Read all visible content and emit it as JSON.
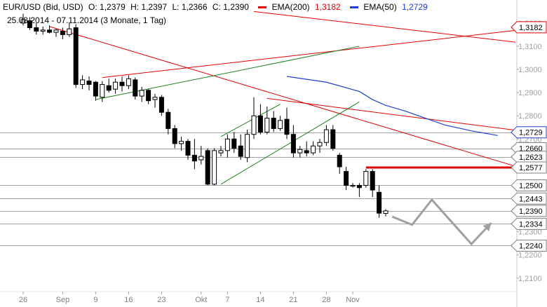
{
  "header": {
    "symbol": "EUR/USD (Bid, USD)",
    "open": "O: 1,2379",
    "high": "H: 1,2397",
    "low": "L: 1,2366",
    "close": "C: 1,2390",
    "ema200_label": "EMA(200)",
    "ema200_value": "1,3182",
    "ema50_label": "EMA(50)",
    "ema50_value": "1,2729",
    "period": "25.08.2014 - 07.11.2014 (3 Monate, 1 Tag)"
  },
  "colors": {
    "background": "#ffffff",
    "ema200": "#e00000",
    "ema50": "#2040d0",
    "channel_red": "#e00000",
    "channel_green": "#208020",
    "horizontal_lines": "#808080",
    "resistance": "#e00000",
    "forecast_arrow": "#a0a0a0",
    "candle": "#000000"
  },
  "chart_data": {
    "type": "candlestick",
    "title": "EUR/USD (Bid, USD)",
    "y_axis_ticks": [
      "1,3200",
      "1,3100",
      "1,3000",
      "1,2900",
      "1,2800",
      "1,2700",
      "1,2300",
      "1,2200",
      "1,2100"
    ],
    "y_axis_values": [
      1.32,
      1.31,
      1.3,
      1.29,
      1.28,
      1.27,
      1.23,
      1.22,
      1.21
    ],
    "ylim": [
      1.206,
      1.3245
    ],
    "x_axis_ticks": [
      "26",
      "Sep",
      "9",
      "16",
      "23",
      "Okt",
      "7",
      "14",
      "21",
      "28",
      "Nov"
    ],
    "x_axis_tick_index": [
      0,
      6,
      11,
      16,
      21,
      27,
      31,
      36,
      41,
      46,
      50
    ],
    "price_levels": [
      {
        "label": "1,3182",
        "value": 1.3182,
        "kind": "ema200"
      },
      {
        "label": "1,2729",
        "value": 1.2729,
        "kind": "ema50"
      },
      {
        "label": "1,2660",
        "value": 1.266,
        "kind": "level"
      },
      {
        "label": "1,2623",
        "value": 1.2623,
        "kind": "level"
      },
      {
        "label": "1,2577",
        "value": 1.2577,
        "kind": "level"
      },
      {
        "label": "1,2500",
        "value": 1.25,
        "kind": "level"
      },
      {
        "label": "1,2443",
        "value": 1.2443,
        "kind": "level"
      },
      {
        "label": "1,2390",
        "value": 1.239,
        "kind": "level"
      },
      {
        "label": "1,2334",
        "value": 1.2334,
        "kind": "level"
      },
      {
        "label": "1,2240",
        "value": 1.224,
        "kind": "level"
      }
    ],
    "candles": [
      {
        "x": 0,
        "o": 1.32,
        "h": 1.324,
        "l": 1.319,
        "c": 1.3215
      },
      {
        "x": 1,
        "o": 1.321,
        "h": 1.3225,
        "l": 1.317,
        "c": 1.318
      },
      {
        "x": 2,
        "o": 1.318,
        "h": 1.32,
        "l": 1.315,
        "c": 1.3165
      },
      {
        "x": 3,
        "o": 1.3165,
        "h": 1.3185,
        "l": 1.315,
        "c": 1.317
      },
      {
        "x": 4,
        "o": 1.317,
        "h": 1.319,
        "l": 1.3155,
        "c": 1.316
      },
      {
        "x": 5,
        "o": 1.316,
        "h": 1.3175,
        "l": 1.314,
        "c": 1.317
      },
      {
        "x": 6,
        "o": 1.3165,
        "h": 1.318,
        "l": 1.313,
        "c": 1.315
      },
      {
        "x": 7,
        "o": 1.315,
        "h": 1.32,
        "l": 1.314,
        "c": 1.3175
      },
      {
        "x": 8,
        "o": 1.318,
        "h": 1.3195,
        "l": 1.292,
        "c": 1.2935
      },
      {
        "x": 9,
        "o": 1.2935,
        "h": 1.2975,
        "l": 1.2915,
        "c": 1.2955
      },
      {
        "x": 10,
        "o": 1.295,
        "h": 1.297,
        "l": 1.291,
        "c": 1.2935
      },
      {
        "x": 11,
        "o": 1.2945,
        "h": 1.295,
        "l": 1.2865,
        "c": 1.2885
      },
      {
        "x": 12,
        "o": 1.288,
        "h": 1.295,
        "l": 1.286,
        "c": 1.2935
      },
      {
        "x": 13,
        "o": 1.293,
        "h": 1.296,
        "l": 1.29,
        "c": 1.291
      },
      {
        "x": 14,
        "o": 1.2915,
        "h": 1.296,
        "l": 1.2895,
        "c": 1.2945
      },
      {
        "x": 15,
        "o": 1.2945,
        "h": 1.297,
        "l": 1.2905,
        "c": 1.293
      },
      {
        "x": 16,
        "o": 1.293,
        "h": 1.2975,
        "l": 1.2915,
        "c": 1.296
      },
      {
        "x": 17,
        "o": 1.2955,
        "h": 1.2965,
        "l": 1.287,
        "c": 1.2885
      },
      {
        "x": 18,
        "o": 1.2885,
        "h": 1.2925,
        "l": 1.286,
        "c": 1.291
      },
      {
        "x": 19,
        "o": 1.291,
        "h": 1.2915,
        "l": 1.285,
        "c": 1.2865
      },
      {
        "x": 20,
        "o": 1.287,
        "h": 1.2895,
        "l": 1.2835,
        "c": 1.288
      },
      {
        "x": 21,
        "o": 1.288,
        "h": 1.289,
        "l": 1.28,
        "c": 1.2815
      },
      {
        "x": 22,
        "o": 1.2815,
        "h": 1.283,
        "l": 1.272,
        "c": 1.2745
      },
      {
        "x": 23,
        "o": 1.2745,
        "h": 1.276,
        "l": 1.266,
        "c": 1.268
      },
      {
        "x": 24,
        "o": 1.268,
        "h": 1.271,
        "l": 1.265,
        "c": 1.269
      },
      {
        "x": 25,
        "o": 1.269,
        "h": 1.27,
        "l": 1.261,
        "c": 1.263
      },
      {
        "x": 26,
        "o": 1.263,
        "h": 1.27,
        "l": 1.257,
        "c": 1.2605
      },
      {
        "x": 27,
        "o": 1.261,
        "h": 1.267,
        "l": 1.259,
        "c": 1.2625
      },
      {
        "x": 28,
        "o": 1.265,
        "h": 1.266,
        "l": 1.25,
        "c": 1.2505
      },
      {
        "x": 29,
        "o": 1.2505,
        "h": 1.266,
        "l": 1.25,
        "c": 1.265
      },
      {
        "x": 30,
        "o": 1.264,
        "h": 1.267,
        "l": 1.2625,
        "c": 1.265
      },
      {
        "x": 31,
        "o": 1.265,
        "h": 1.272,
        "l": 1.262,
        "c": 1.27
      },
      {
        "x": 32,
        "o": 1.27,
        "h": 1.273,
        "l": 1.264,
        "c": 1.266
      },
      {
        "x": 33,
        "o": 1.267,
        "h": 1.272,
        "l": 1.261,
        "c": 1.2625
      },
      {
        "x": 34,
        "o": 1.262,
        "h": 1.274,
        "l": 1.26,
        "c": 1.272
      },
      {
        "x": 35,
        "o": 1.272,
        "h": 1.288,
        "l": 1.27,
        "c": 1.28
      },
      {
        "x": 36,
        "o": 1.28,
        "h": 1.285,
        "l": 1.272,
        "c": 1.273
      },
      {
        "x": 37,
        "o": 1.273,
        "h": 1.284,
        "l": 1.272,
        "c": 1.279
      },
      {
        "x": 38,
        "o": 1.279,
        "h": 1.282,
        "l": 1.273,
        "c": 1.2745
      },
      {
        "x": 39,
        "o": 1.2745,
        "h": 1.28,
        "l": 1.2735,
        "c": 1.278
      },
      {
        "x": 40,
        "o": 1.2785,
        "h": 1.2835,
        "l": 1.27,
        "c": 1.272
      },
      {
        "x": 41,
        "o": 1.272,
        "h": 1.276,
        "l": 1.262,
        "c": 1.264
      },
      {
        "x": 42,
        "o": 1.264,
        "h": 1.267,
        "l": 1.262,
        "c": 1.2655
      },
      {
        "x": 43,
        "o": 1.265,
        "h": 1.269,
        "l": 1.2625,
        "c": 1.264
      },
      {
        "x": 44,
        "o": 1.264,
        "h": 1.269,
        "l": 1.263,
        "c": 1.267
      },
      {
        "x": 45,
        "o": 1.267,
        "h": 1.27,
        "l": 1.264,
        "c": 1.2685
      },
      {
        "x": 46,
        "o": 1.2685,
        "h": 1.276,
        "l": 1.267,
        "c": 1.274
      },
      {
        "x": 47,
        "o": 1.274,
        "h": 1.276,
        "l": 1.265,
        "c": 1.266
      },
      {
        "x": 48,
        "o": 1.263,
        "h": 1.264,
        "l": 1.255,
        "c": 1.258
      },
      {
        "x": 49,
        "o": 1.256,
        "h": 1.258,
        "l": 1.248,
        "c": 1.25
      },
      {
        "x": 50,
        "o": 1.25,
        "h": 1.251,
        "l": 1.249,
        "c": 1.25
      },
      {
        "x": 51,
        "o": 1.25,
        "h": 1.251,
        "l": 1.245,
        "c": 1.249
      },
      {
        "x": 52,
        "o": 1.25,
        "h": 1.257,
        "l": 1.249,
        "c": 1.256
      },
      {
        "x": 53,
        "o": 1.256,
        "h": 1.257,
        "l": 1.245,
        "c": 1.248
      },
      {
        "x": 54,
        "o": 1.247,
        "h": 1.25,
        "l": 1.236,
        "c": 1.238
      },
      {
        "x": 55,
        "o": 1.2379,
        "h": 1.2397,
        "l": 1.2366,
        "c": 1.239
      }
    ],
    "ema50": [
      {
        "x": 40,
        "y": 1.297
      },
      {
        "x": 46,
        "y": 1.2945
      },
      {
        "x": 51,
        "y": 1.2905
      },
      {
        "x": 53,
        "y": 1.287
      },
      {
        "x": 55,
        "y": 1.2845
      },
      {
        "x": 58,
        "y": 1.282
      },
      {
        "x": 61,
        "y": 1.279
      },
      {
        "x": 64,
        "y": 1.276
      },
      {
        "x": 68,
        "y": 1.2735
      },
      {
        "x": 72,
        "y": 1.2715
      }
    ],
    "trendlines": [
      {
        "color": "red",
        "x1": 4,
        "y1": 1.3185,
        "x2": 140,
        "y2": 1.2025
      },
      {
        "color": "red",
        "x1": 37,
        "y1": 1.2875,
        "x2": 140,
        "y2": 1.25
      },
      {
        "color": "red",
        "x1": 12,
        "y1": 1.2965,
        "x2": 140,
        "y2": 1.338
      },
      {
        "color": "red",
        "x1": 35,
        "y1": 1.325,
        "x2": 140,
        "y2": 1.29
      },
      {
        "color": "green",
        "x1": 11,
        "y1": 1.287,
        "x2": 51,
        "y2": 1.31
      },
      {
        "color": "green",
        "x1": 30,
        "y1": 1.2505,
        "x2": 51,
        "y2": 1.286
      },
      {
        "color": "green",
        "x1": 30,
        "y1": 1.271,
        "x2": 39,
        "y2": 1.285
      }
    ],
    "resistance": {
      "x1": 52,
      "x2": 140,
      "y": 1.2577
    },
    "forecast": [
      {
        "x": 56,
        "y": 1.2365
      },
      {
        "x": 59,
        "y": 1.233
      },
      {
        "x": 62,
        "y": 1.2438
      },
      {
        "x": 68,
        "y": 1.2247
      },
      {
        "x": 71,
        "y": 1.2338
      }
    ]
  }
}
